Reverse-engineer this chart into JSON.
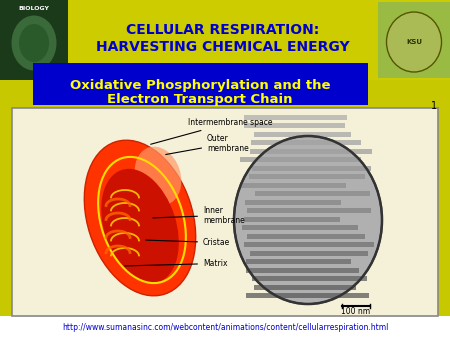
{
  "bg_color": "#c8c800",
  "header_bg": "#cccc00",
  "title_line1": "CELLULAR RESPIRATION:",
  "title_line2": "HARVESTING CHEMICAL ENERGY",
  "title_color": "#0000cc",
  "subtitle_bg": "#0000cc",
  "subtitle_line1": "Oxidative Phosphorylation and the",
  "subtitle_line2": "Electron Transport Chain",
  "subtitle_color": "#ffff00",
  "content_bg": "#f5f0d8",
  "content_border": "#888888",
  "url_text": "http://www.sumanasinc.com/webcontent/animations/content/cellularrespiration.html",
  "url_color": "#0000cc",
  "label_intermembrane": "Intermembrane space",
  "label_outer": "Outer\nmembrane",
  "label_inner": "Inner\nmembrane",
  "label_cristae": "Cristae",
  "label_matrix": "Matrix",
  "label_scalebar": "100 nm",
  "main_bg": "#ffffff"
}
